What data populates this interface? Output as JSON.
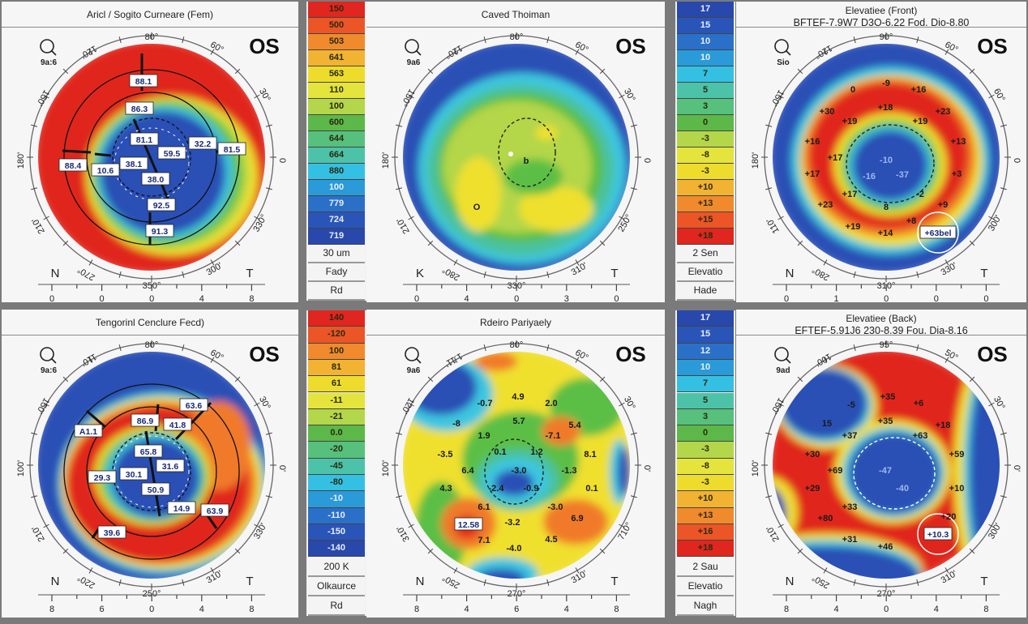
{
  "panels": [
    {
      "title": "Aricl / Sogito Curneare (Fem)",
      "subtitle": "",
      "eye": "OS",
      "scale_label": "9a:6",
      "degrees": [
        "80°",
        "120'",
        "150'",
        "180'",
        "210'",
        "270°",
        "350°",
        "300'",
        "330°",
        "0",
        "30°",
        "60°"
      ],
      "nasal": "N",
      "temporal": "T",
      "ruler": [
        "0",
        "0",
        "0",
        "4",
        "8"
      ],
      "values": [
        "88.1",
        "86.3",
        "81.1",
        "59.5",
        "32.2",
        "81.5",
        "88.4",
        "10.6",
        "38.1",
        "38.0",
        "92.5",
        "91.3"
      ]
    },
    {
      "title": "Caved Thoiman",
      "subtitle": "",
      "eye": "OS",
      "scale_label": "9a6",
      "degrees": [
        "80°",
        "120°",
        "150°",
        "180'",
        "210'",
        "280°",
        "330°",
        "310'",
        "250°",
        "0",
        "30°",
        "60°"
      ],
      "nasal": "K",
      "temporal": "T",
      "ruler": [
        "0",
        "4",
        "0",
        "3",
        "0"
      ],
      "values": [
        "O",
        "b"
      ]
    },
    {
      "title": "Elevatiee (Front)",
      "subtitle": "BFTEF-7.9W7 D3O-6.22 Fod. Dio-8.80",
      "eye": "OS",
      "scale_label": "Sio",
      "degrees": [
        "90°",
        "120°",
        "150'",
        "180'",
        "110'",
        "280°",
        "310°",
        "330'",
        "300'",
        "0",
        "60°",
        "60°"
      ],
      "nasal": "N",
      "temporal": "T",
      "ruler": [
        "0",
        "1",
        "0",
        "0",
        "0"
      ],
      "values": [
        "-9",
        "0",
        "+16",
        "+30",
        "+18",
        "+23",
        "+19",
        "+19",
        "+16",
        "+13",
        "+17",
        "-10",
        "+17",
        "-16",
        "-37",
        "+3",
        "+17",
        "-2",
        "+23",
        "8",
        "+9",
        "+19",
        "+14",
        "+8",
        "+63bel"
      ]
    },
    {
      "title": "Tengorinl Cenclure Fecd)",
      "subtitle": "",
      "eye": "OS",
      "scale_label": "9a:6",
      "degrees": [
        "80°",
        "110'",
        "150'",
        "100'",
        "210'",
        "220°",
        "250°",
        "310'",
        "330'",
        "0'",
        "30°",
        "60°"
      ],
      "nasal": "N",
      "temporal": "T",
      "ruler": [
        "8",
        "6",
        "0",
        "4",
        "8"
      ],
      "values": [
        "A1.1",
        "86.9",
        "41.8",
        "63.6",
        "65.8",
        "31.6",
        "29.3",
        "30.1",
        "50.9",
        "14.9",
        "63.9",
        "39.6"
      ]
    },
    {
      "title": "Rdeiro Pariyaely",
      "subtitle": "",
      "eye": "OS",
      "scale_label": "9a6",
      "degrees": [
        "80°",
        "1.11'",
        "120'",
        "100'",
        "310'",
        "250°",
        "270°",
        "310'",
        "710°",
        "0'",
        "30°",
        "60°"
      ],
      "nasal": "N",
      "temporal": "T",
      "ruler": [
        "8",
        "4",
        "6",
        "4",
        "8"
      ],
      "values": [
        "-0.7",
        "4.9",
        "2.0",
        "-8",
        "5.7",
        "5.4",
        "1.9",
        "-7.1",
        "-3.5",
        "0.1",
        "1.2",
        "8.1",
        "6.4",
        "-3.0",
        "-1.3",
        "4.3",
        "-2.4",
        "-0.9",
        "0.1",
        "6.1",
        "12.58",
        "-3.0",
        "6.9",
        "-3.2",
        "7.1",
        "4.5",
        "-4.0"
      ]
    },
    {
      "title": "Elevatiee (Back)",
      "subtitle": "EFTEF-5.91J6 230-8.39 Fou. Dia-8.16",
      "eye": "OS",
      "scale_label": "9ad",
      "degrees": [
        "95°",
        "100'",
        "150'",
        "100'",
        "210'",
        "250°",
        "270°",
        "310'",
        "300'",
        "0'",
        "30°",
        "50°"
      ],
      "nasal": "N",
      "temporal": "T",
      "ruler": [
        "8",
        "4",
        "0",
        "4",
        "8"
      ],
      "values": [
        "+35",
        "+6",
        "15",
        "-5",
        "+35",
        "+18",
        "+37",
        "+63",
        "+30",
        "+59",
        "+69",
        "-47",
        "+29",
        "-40",
        "+10",
        "+33",
        "+80",
        "+31",
        "+46",
        "+20",
        "+10.3"
      ]
    }
  ],
  "legends": [
    {
      "values": [
        "150",
        "500",
        "503",
        "641",
        "563",
        "110",
        "100",
        "600",
        "644",
        "664",
        "880",
        "100",
        "779",
        "724",
        "719"
      ],
      "footer": [
        "30 um",
        "Fady",
        "Rd"
      ]
    },
    {
      "values": [
        "17",
        "15",
        "10",
        "10",
        "7",
        "5",
        "3",
        "0",
        "-3",
        "-8",
        "-3",
        "+10",
        "+13",
        "+15",
        "+18"
      ],
      "footer": [
        "2 Sen",
        "Elevatio",
        "Hade"
      ]
    },
    {
      "values": [
        "140",
        "-120",
        "100",
        "81",
        "61",
        "-11",
        "-21",
        "0.0",
        "-20",
        "-45",
        "-80",
        "-10",
        "-110",
        "-150",
        "-140"
      ],
      "footer": [
        "200 K",
        "Olkaurce",
        "Rd"
      ]
    },
    {
      "values": [
        "17",
        "15",
        "12",
        "10",
        "7",
        "5",
        "3",
        "0",
        "-3",
        "-8",
        "-3",
        "+10",
        "+13",
        "+16",
        "+18"
      ],
      "footer": [
        "2 Sau",
        "Elevatio",
        "Nagh"
      ]
    }
  ],
  "colors": {
    "warm_to_cool": [
      "#e0261f",
      "#ec5526",
      "#f08a2c",
      "#f2b232",
      "#eedc2c",
      "#e4e43c",
      "#b4d64a",
      "#5cb848",
      "#56c07c",
      "#4cc3a8",
      "#34c0e2",
      "#2a9ad8",
      "#2a70c8",
      "#2a55b8",
      "#2848ac"
    ]
  }
}
